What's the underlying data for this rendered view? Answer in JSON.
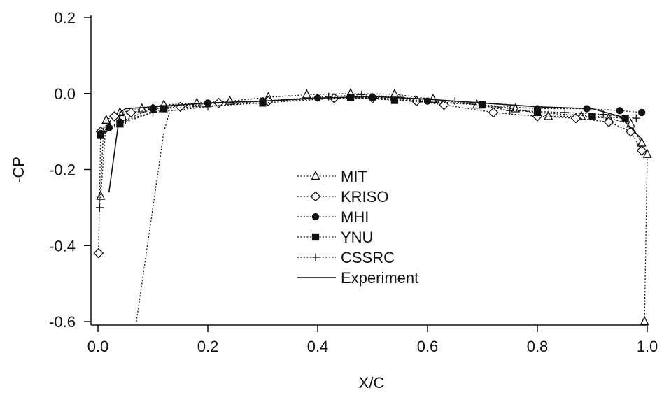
{
  "chart_data": {
    "type": "line",
    "xlabel": "X/C",
    "ylabel": "-CP",
    "xlim": [
      0.0,
      1.0
    ],
    "ylim": [
      -0.6,
      0.2
    ],
    "x_ticks": [
      "0.0",
      "0.2",
      "0.4",
      "0.6",
      "0.8",
      "1.0"
    ],
    "y_ticks": [
      "0.2",
      "0.0",
      "-0.2",
      "-0.4",
      "-0.6"
    ],
    "grid": false,
    "legend_position": "center",
    "series": [
      {
        "name": "MIT",
        "marker": "triangle-open",
        "line": "dotted",
        "x": [
          0.005,
          0.015,
          0.04,
          0.08,
          0.12,
          0.18,
          0.24,
          0.31,
          0.38,
          0.46,
          0.54,
          0.61,
          0.69,
          0.76,
          0.82,
          0.88,
          0.93,
          0.97,
          0.99,
          1.0,
          0.995
        ],
        "y": [
          -0.27,
          -0.07,
          -0.05,
          -0.04,
          -0.03,
          -0.025,
          -0.02,
          -0.01,
          -0.003,
          0.0,
          -0.002,
          -0.015,
          -0.03,
          -0.04,
          -0.06,
          -0.06,
          -0.065,
          -0.08,
          -0.13,
          -0.16,
          -0.6
        ]
      },
      {
        "name": "KRISO",
        "marker": "diamond-open",
        "line": "dotted",
        "x": [
          0.001,
          0.005,
          0.03,
          0.06,
          0.1,
          0.15,
          0.22,
          0.31,
          0.43,
          0.5,
          0.58,
          0.63,
          0.72,
          0.8,
          0.87,
          0.93,
          0.97,
          0.99
        ],
        "y": [
          -0.42,
          -0.1,
          -0.06,
          -0.05,
          -0.04,
          -0.035,
          -0.025,
          -0.02,
          -0.012,
          -0.012,
          -0.02,
          -0.03,
          -0.05,
          -0.06,
          -0.065,
          -0.075,
          -0.1,
          -0.15
        ]
      },
      {
        "name": "MHI",
        "marker": "circle-filled",
        "line": "dotted",
        "x": [
          0.005,
          0.02,
          0.04,
          0.1,
          0.2,
          0.3,
          0.4,
          0.5,
          0.6,
          0.7,
          0.8,
          0.89,
          0.95,
          0.99
        ],
        "y": [
          -0.105,
          -0.09,
          -0.075,
          -0.04,
          -0.025,
          -0.02,
          -0.012,
          -0.01,
          -0.02,
          -0.03,
          -0.04,
          -0.04,
          -0.045,
          -0.05
        ]
      },
      {
        "name": "YNU",
        "marker": "square-filled",
        "line": "dotted",
        "x": [
          0.005,
          0.04,
          0.12,
          0.3,
          0.46,
          0.54,
          0.7,
          0.8,
          0.9,
          0.96
        ],
        "y": [
          -0.11,
          -0.08,
          -0.04,
          -0.025,
          -0.01,
          -0.018,
          -0.03,
          -0.05,
          -0.06,
          -0.065
        ]
      },
      {
        "name": "CSSRC",
        "marker": "plus",
        "line": "dotted",
        "x": [
          0.003,
          0.01,
          0.05,
          0.1,
          0.2,
          0.3,
          0.42,
          0.48,
          0.55,
          0.65,
          0.75,
          0.85,
          0.92,
          0.98
        ],
        "y": [
          -0.3,
          -0.1,
          -0.07,
          -0.05,
          -0.035,
          -0.02,
          -0.008,
          -0.003,
          -0.01,
          -0.02,
          -0.045,
          -0.05,
          -0.055,
          -0.065
        ]
      },
      {
        "name": "Experiment",
        "marker": "none",
        "line": "solid",
        "x": [
          0.02,
          0.04,
          0.05,
          0.1,
          0.2,
          0.3,
          0.4,
          0.5,
          0.6,
          0.7,
          0.8,
          0.9,
          0.95,
          0.99
        ],
        "y": [
          -0.26,
          -0.05,
          -0.04,
          -0.035,
          -0.025,
          -0.02,
          -0.012,
          -0.008,
          -0.015,
          -0.025,
          -0.035,
          -0.04,
          -0.06,
          -0.12
        ]
      },
      {
        "name": "",
        "marker": "none",
        "line": "dotted",
        "x": [
          0.07,
          0.12,
          0.13
        ],
        "y": [
          -0.6,
          -0.1,
          -0.05
        ]
      }
    ]
  },
  "colors": {
    "ink": "#111111",
    "background": "#ffffff"
  }
}
